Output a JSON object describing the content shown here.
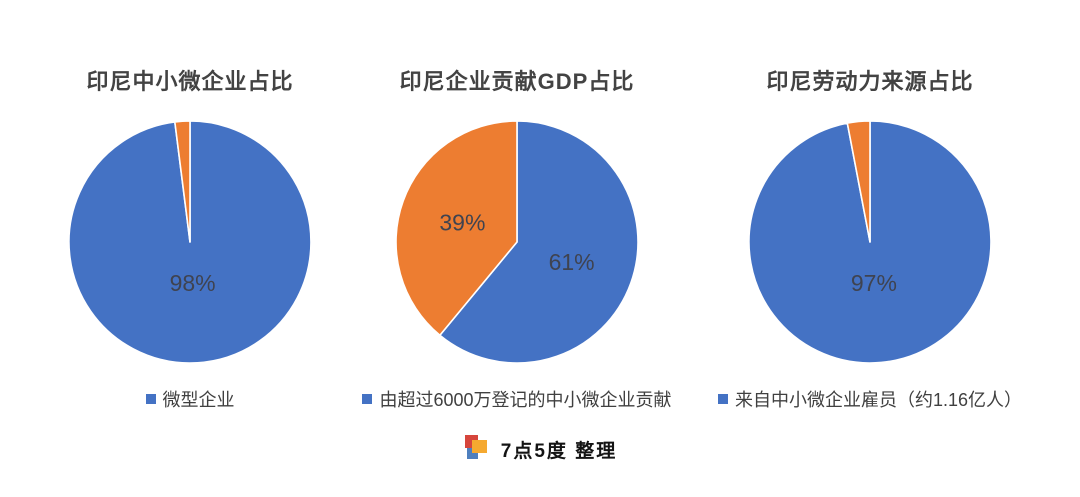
{
  "chart_data": [
    {
      "type": "pie",
      "title": "印尼中小微企业占比",
      "slices": [
        {
          "value": 98,
          "color": "#4472C4",
          "label": "98%"
        },
        {
          "value": 2,
          "color": "#ED7D31",
          "label": ""
        }
      ],
      "legend": [
        {
          "text": "微型企业",
          "color": "#4472C4"
        }
      ],
      "legend_position": "bottom",
      "start_angle_deg": 0,
      "direction": "clockwise"
    },
    {
      "type": "pie",
      "title": "印尼企业贡献GDP占比",
      "slices": [
        {
          "value": 61,
          "color": "#4472C4",
          "label": "61%"
        },
        {
          "value": 39,
          "color": "#ED7D31",
          "label": "39%"
        }
      ],
      "legend": [
        {
          "text": "由超过6000万登记的中小微企业贡献",
          "color": "#4472C4"
        }
      ],
      "legend_position": "bottom",
      "start_angle_deg": 0,
      "direction": "clockwise"
    },
    {
      "type": "pie",
      "title": "印尼劳动力来源占比",
      "slices": [
        {
          "value": 97,
          "color": "#4472C4",
          "label": "97%"
        },
        {
          "value": 3,
          "color": "#ED7D31",
          "label": ""
        }
      ],
      "legend": [
        {
          "text": "来自中小微企业雇员（约1.16亿人）",
          "color": "#4472C4"
        }
      ],
      "legend_position": "bottom",
      "start_angle_deg": 0,
      "direction": "clockwise"
    }
  ],
  "colors": {
    "series_blue": "#4472C4",
    "series_orange": "#ED7D31",
    "label_text": "#3f4350",
    "title_text": "#434343"
  },
  "footer": {
    "credit": "7点5度 整理",
    "logo_colors": {
      "red": "#D6453C",
      "orange": "#F5A930",
      "blue": "#4E7FBE"
    }
  }
}
